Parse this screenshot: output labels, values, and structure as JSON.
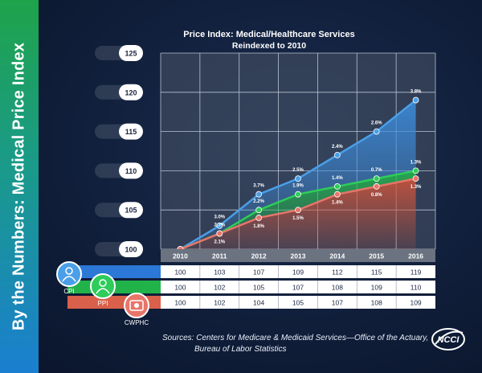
{
  "side_title": "By the Numbers: Medical Price Index",
  "chart_data": {
    "type": "area",
    "title": "Price Index: Medical/Healthcare Services",
    "subtitle": "Reindexed to 2010",
    "x": [
      "2010",
      "2011",
      "2012",
      "2013",
      "2014",
      "2015",
      "2016"
    ],
    "yticks": [
      "100",
      "105",
      "110",
      "115",
      "120",
      "125"
    ],
    "ylim": [
      100,
      125
    ],
    "grid": true,
    "series": [
      {
        "name": "CPI",
        "color": "#4a9fe8",
        "values": [
          100,
          103,
          107,
          109,
          112,
          115,
          119
        ],
        "labels": [
          "",
          "3.0%",
          "3.7%",
          "2.5%",
          "2.4%",
          "2.6%",
          "3.8%"
        ],
        "row": [
          "100",
          "103",
          "107",
          "109",
          "112",
          "115",
          "119"
        ]
      },
      {
        "name": "PPI",
        "color": "#2ecc5a",
        "values": [
          100,
          102,
          105,
          107,
          108,
          109,
          110
        ],
        "labels": [
          "",
          "2.3%",
          "2.2%",
          "1.9%",
          "1.4%",
          "0.7%",
          "1.3%"
        ],
        "row": [
          "100",
          "102",
          "105",
          "107",
          "108",
          "109",
          "110"
        ]
      },
      {
        "name": "CWPHC",
        "color": "#e8756a",
        "values": [
          100,
          102,
          104,
          105,
          107,
          108,
          109
        ],
        "labels": [
          "",
          "2.1%",
          "1.8%",
          "1.5%",
          "1.4%",
          "0.8%",
          "1.3%"
        ],
        "row": [
          "100",
          "102",
          "104",
          "105",
          "107",
          "108",
          "109"
        ]
      }
    ]
  },
  "sources_line1": "Sources: Centers for Medicare & Medicaid Services—Office of the Actuary,",
  "sources_line2": "Bureau of Labor Statistics",
  "logo_text": "NCCI",
  "colors": {
    "cpi": "#4a9fe8",
    "ppi": "#2ecc5a",
    "cwphc": "#e8756a"
  }
}
